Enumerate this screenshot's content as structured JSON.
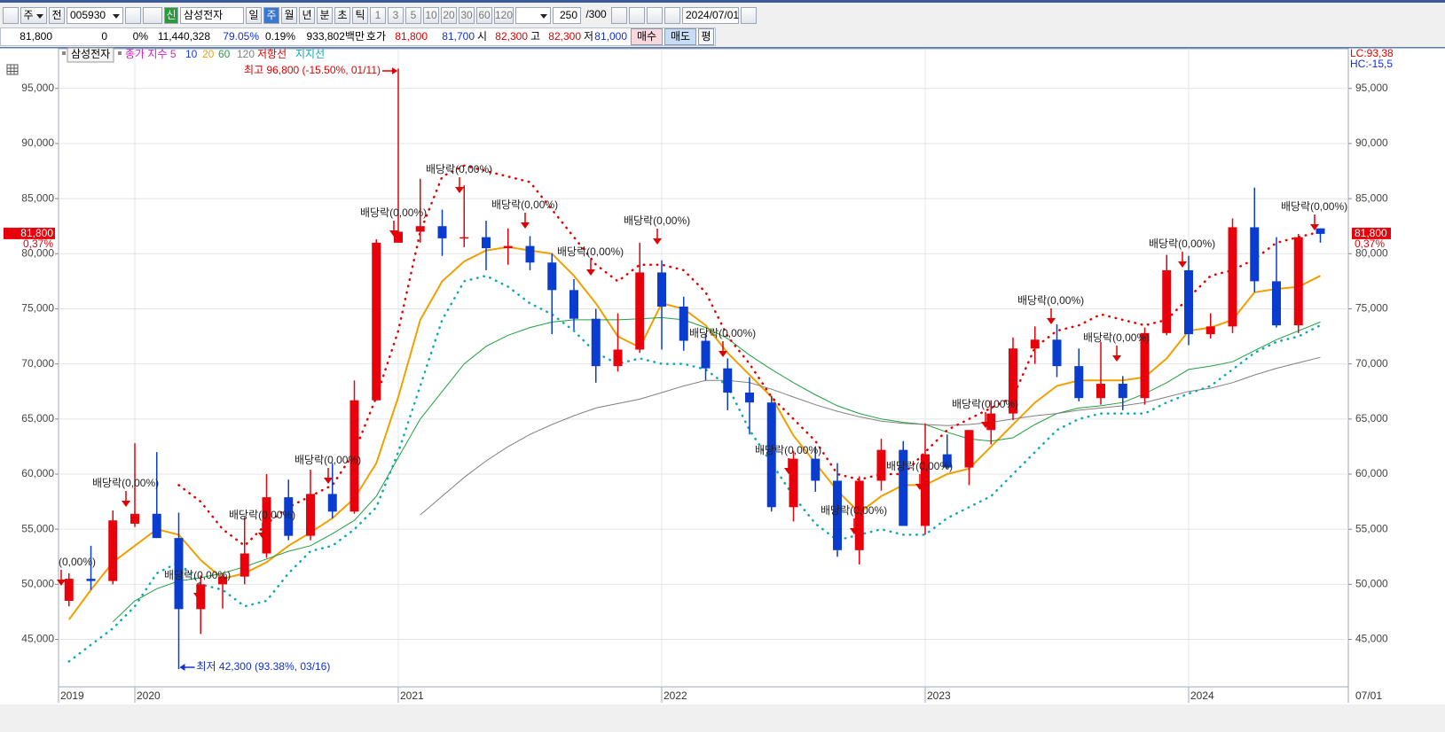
{
  "toolbar": {
    "row1": [
      "주",
      "전",
      "005930",
      "신",
      "삼성전자",
      "일",
      "주",
      "월",
      "년",
      "분",
      "초",
      "틱",
      "1",
      "3",
      "5",
      "10",
      "20",
      "30",
      "60",
      "120",
      "250",
      "/300",
      "2024/07/01"
    ],
    "row2": [
      "81,800",
      "0",
      "0%",
      "11,440,328",
      "79.05%",
      "0.19%",
      "933,802백만",
      "호가",
      "81,800",
      "81,700",
      "시",
      "82,300",
      "고",
      "82,300",
      "저",
      "81,000",
      "매수",
      "매도",
      "평"
    ]
  },
  "chart_data": {
    "type": "candlestick",
    "legend_prefix": "삼성전자",
    "ma_labels": [
      {
        "label": "종가 지수 5",
        "color": "#d020d0"
      },
      {
        "label": "10",
        "color": "#2040e0"
      }
    ],
    "categories": [
      "2019",
      null,
      null,
      "2020",
      null,
      null,
      null,
      null,
      null,
      null,
      null,
      null,
      null,
      null,
      null,
      "2021",
      null,
      null,
      null,
      null,
      null,
      null,
      null,
      null,
      null,
      null,
      null,
      "2022",
      null,
      null,
      null,
      null,
      null,
      null,
      null,
      null,
      null,
      null,
      null,
      "2023",
      null,
      null,
      null,
      null,
      null,
      null,
      null,
      null,
      null,
      null,
      null,
      "2024",
      null,
      null,
      null,
      null,
      null,
      null
    ],
    "end_date": "07/01",
    "up_color": "#e8000b",
    "down_color": "#0a3cd0",
    "candles": {
      "open": [
        48500,
        50500,
        50300,
        55500,
        56400,
        54200,
        47750,
        50000,
        50700,
        52800,
        57900,
        54400,
        58200,
        56600,
        66700,
        81000,
        82000,
        82500,
        81400,
        81500,
        80500,
        80700,
        79200,
        76700,
        74100,
        69800,
        71300,
        78300,
        75200,
        72100,
        69600,
        67400,
        66500,
        57000,
        61400,
        59400,
        53100,
        59400,
        62200,
        55300,
        61800,
        60600,
        64000,
        65500,
        71400,
        72200,
        69800,
        66900,
        68200,
        66900,
        72800,
        78500,
        72700,
        73400,
        82400,
        77500,
        73500,
        82300
      ],
      "high": [
        51000,
        53500,
        56700,
        62800,
        62000,
        56500,
        50800,
        51000,
        56100,
        60000,
        59500,
        60400,
        61000,
        68500,
        81300,
        96800,
        86800,
        84000,
        86200,
        83000,
        82300,
        81600,
        80000,
        77700,
        75000,
        74600,
        81000,
        79400,
        76100,
        72800,
        70500,
        68800,
        67100,
        62100,
        62500,
        61000,
        59800,
        63200,
        63000,
        64600,
        63600,
        64000,
        66700,
        72400,
        73400,
        73600,
        71400,
        72000,
        68900,
        73300,
        79900,
        79800,
        74600,
        83200,
        86000,
        81500,
        81800,
        82300
      ],
      "low": [
        48000,
        49500,
        50000,
        55200,
        54200,
        42300,
        45500,
        47800,
        50000,
        52400,
        54000,
        54000,
        56000,
        56400,
        66700,
        81000,
        81000,
        79800,
        80600,
        78500,
        79000,
        78500,
        72700,
        73100,
        68300,
        69300,
        71000,
        71300,
        71200,
        68500,
        65800,
        63600,
        56600,
        55700,
        58400,
        52500,
        51800,
        58500,
        55300,
        54500,
        60500,
        59000,
        62700,
        64900,
        70000,
        68800,
        66600,
        66300,
        65800,
        66300,
        72600,
        71700,
        72300,
        72800,
        76500,
        73300,
        72800,
        81000
      ],
      "close": [
        50500,
        50300,
        55800,
        56400,
        54200,
        47750,
        50000,
        50700,
        52800,
        57900,
        54400,
        58200,
        56600,
        66700,
        81000,
        82000,
        82500,
        81400,
        81500,
        80500,
        80700,
        79200,
        76700,
        74100,
        69800,
        71300,
        78300,
        75200,
        72100,
        69600,
        67400,
        66500,
        57000,
        61400,
        59400,
        53100,
        59400,
        62200,
        55300,
        61800,
        60600,
        64000,
        65500,
        71400,
        72200,
        69800,
        66900,
        68200,
        66900,
        72800,
        78500,
        72700,
        73400,
        82400,
        77500,
        73500,
        81500,
        81800
      ]
    },
    "series": [
      {
        "name": "20",
        "color": "#f0a000",
        "width": 2,
        "dotted": false,
        "values": [
          46800,
          49500,
          52000,
          53500,
          55000,
          54500,
          52200,
          50500,
          51000,
          52000,
          53500,
          54700,
          56000,
          57800,
          61000,
          67000,
          74000,
          77500,
          79300,
          80300,
          80600,
          80300,
          80000,
          78000,
          75500,
          72500,
          71500,
          75500,
          75000,
          73500,
          71000,
          69000,
          67000,
          63500,
          61000,
          58500,
          56500,
          58000,
          59000,
          59000,
          60000,
          60500,
          62500,
          64500,
          66500,
          68000,
          68500,
          68500,
          68500,
          68800,
          70500,
          73000,
          73300,
          74000,
          76500,
          76800,
          77000,
          78000
        ]
      },
      {
        "name": "60",
        "color": "#20a040",
        "width": 1,
        "dotted": false,
        "values": [
          null,
          null,
          46600,
          48500,
          49600,
          50300,
          50600,
          51000,
          51600,
          52300,
          53000,
          53500,
          54600,
          55800,
          58000,
          61500,
          65000,
          67500,
          70000,
          71600,
          72600,
          73300,
          73800,
          74000,
          74000,
          74000,
          74100,
          74200,
          74000,
          73300,
          72300,
          70800,
          69500,
          68300,
          67200,
          66200,
          65500,
          65000,
          64700,
          64500,
          63800,
          63200,
          63000,
          63300,
          64500,
          65500,
          66000,
          66200,
          66500,
          67300,
          68300,
          69500,
          69800,
          70200,
          71200,
          72200,
          73000,
          73800
        ]
      },
      {
        "name": "120",
        "color": "#808080",
        "width": 1,
        "dotted": false,
        "values": [
          null,
          null,
          null,
          null,
          null,
          null,
          null,
          null,
          null,
          null,
          null,
          null,
          null,
          null,
          null,
          null,
          56300,
          58000,
          59700,
          61200,
          62500,
          63600,
          64500,
          65300,
          66000,
          66400,
          66800,
          67400,
          68000,
          68500,
          68500,
          68300,
          67700,
          67000,
          66300,
          65700,
          65200,
          64800,
          64600,
          64500,
          64400,
          64500,
          64700,
          65000,
          65300,
          65500,
          65800,
          66000,
          66200,
          66500,
          67000,
          67500,
          67800,
          68300,
          69000,
          69600,
          70100,
          70600
        ]
      },
      {
        "name": "저항선",
        "color": "#e00000",
        "width": 2.5,
        "dotted": true,
        "values": [
          null,
          null,
          null,
          null,
          null,
          59000,
          57500,
          55000,
          53500,
          55500,
          57000,
          58000,
          59000,
          62000,
          67000,
          73000,
          82000,
          87000,
          88000,
          87500,
          87000,
          86500,
          84000,
          81500,
          79000,
          77500,
          79000,
          79000,
          78500,
          76500,
          72500,
          70000,
          67000,
          65000,
          63000,
          60000,
          59500,
          60000,
          60000,
          62000,
          64000,
          65000,
          66000,
          67000,
          71500,
          73000,
          73500,
          74500,
          74000,
          73500,
          74000,
          76000,
          78000,
          78500,
          79500,
          81000,
          81500,
          82000
        ]
      },
      {
        "name": "지지선",
        "color": "#10a8b0",
        "width": 2.5,
        "dotted": true,
        "values": [
          43000,
          44500,
          46000,
          48000,
          51000,
          52000,
          50000,
          49500,
          48000,
          48500,
          51000,
          53000,
          53500,
          55000,
          57000,
          62000,
          68000,
          74000,
          77500,
          78000,
          77000,
          75500,
          74500,
          73000,
          71000,
          70000,
          70500,
          70000,
          70000,
          69500,
          68000,
          64000,
          61000,
          58000,
          55500,
          54000,
          54500,
          55000,
          54500,
          54500,
          56000,
          57000,
          58000,
          60000,
          62000,
          64000,
          65000,
          65500,
          65500,
          65500,
          66500,
          67300,
          68000,
          69500,
          71000,
          72000,
          72500,
          73500
        ]
      }
    ],
    "ylim": [
      40700,
      98600
    ],
    "yticks": [
      {
        "value": 45000,
        "label": "45,000"
      },
      {
        "value": 50000,
        "label": "50,000"
      },
      {
        "value": 55000,
        "label": "55,000"
      },
      {
        "value": 60000,
        "label": "60,000"
      },
      {
        "value": 65000,
        "label": "65,000"
      },
      {
        "value": 70000,
        "label": "70,000"
      },
      {
        "value": 75000,
        "label": "75,000"
      },
      {
        "value": 80000,
        "label": "80,000"
      },
      {
        "value": 85000,
        "label": "85,000"
      },
      {
        "value": 90000,
        "label": "90,000"
      },
      {
        "value": 95000,
        "label": "95,000"
      }
    ],
    "grid": true,
    "last": {
      "value": 81800,
      "label": "81,800",
      "change": "0,37%"
    },
    "right_labels": [
      "LC:93,38",
      "HC:-15,5"
    ],
    "high_label": "최고 96,800 (-15.50%, 01/11)",
    "low_label": "최저 42,300 (93.38%, 03/16)",
    "dividend_labels": [
      "(0,00%)",
      "배당락(0,00%)",
      "배당락(0,00%)",
      "배당락(0,00%)",
      "배당락(0,00%)",
      "배당락(0,00%)",
      "배당락(0,00%)",
      "배당락(0,00%)",
      "배당락(0,00%)",
      "배당락(0,00%)",
      "배당락(0,00%)",
      "배당락(0,00%)",
      "배당락(0,00%)",
      "배당락(0,00%)",
      "배당락(0,00%)",
      "배당락(0,00%)",
      "배당락(0,00%)",
      "배당락(0,00%)",
      "배당락(0,00%)"
    ]
  }
}
